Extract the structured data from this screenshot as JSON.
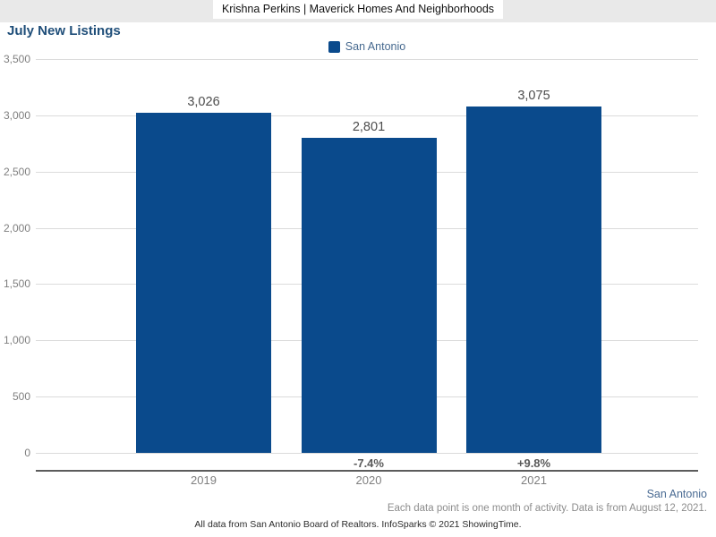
{
  "header": {
    "title": "Krishna Perkins | Maverick Homes And Neighborhoods"
  },
  "chart": {
    "title": "July New Listings",
    "legend_label": "San Antonio",
    "region_footnote": "San Antonio",
    "data_footnote": "Each data point is one month of activity. Data is from August 12, 2021.",
    "attribution": "All data from San Antonio Board of Realtors. InfoSparks © 2021 ShowingTime."
  },
  "colors": {
    "bar_blue": "#0a4a8c",
    "title_navy": "#1f4e79",
    "header_band_gray": "#e9e9e9"
  },
  "chart_data": {
    "type": "bar",
    "title": "July New Listings",
    "categories": [
      "2019",
      "2020",
      "2021"
    ],
    "series": [
      {
        "name": "San Antonio",
        "values": [
          3026,
          2801,
          3075
        ]
      }
    ],
    "value_labels": [
      "3,026",
      "2,801",
      "3,075"
    ],
    "pct_change_labels": [
      "",
      "-7.4%",
      "+9.8%"
    ],
    "ylim": [
      0,
      3500
    ],
    "ytick_interval": 500,
    "ytick_labels": [
      "0",
      "500",
      "1,000",
      "1,500",
      "2,000",
      "2,500",
      "3,000",
      "3,500"
    ],
    "grid": true,
    "legend_position": "top-center",
    "bar_color": "#0a4a8c"
  }
}
